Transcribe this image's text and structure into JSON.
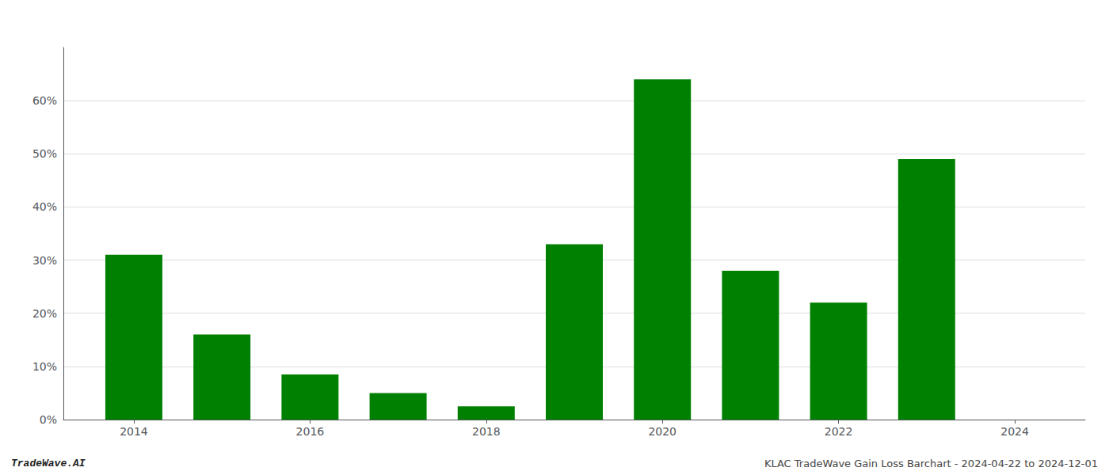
{
  "chart_data": {
    "type": "bar",
    "x": [
      2014,
      2015,
      2016,
      2017,
      2018,
      2019,
      2020,
      2021,
      2022,
      2023
    ],
    "values": [
      0.31,
      0.16,
      0.085,
      0.05,
      0.025,
      0.33,
      0.64,
      0.28,
      0.22,
      0.49
    ],
    "color": "#008000",
    "xlim": [
      2013.2,
      2024.8
    ],
    "xticks": [
      2014,
      2016,
      2018,
      2020,
      2022,
      2024
    ],
    "ylim": [
      0,
      0.7
    ],
    "yticks": [
      {
        "value": 0.0,
        "label": "0%"
      },
      {
        "value": 0.1,
        "label": "10%"
      },
      {
        "value": 0.2,
        "label": "20%"
      },
      {
        "value": 0.3,
        "label": "30%"
      },
      {
        "value": 0.4,
        "label": "40%"
      },
      {
        "value": 0.5,
        "label": "50%"
      },
      {
        "value": 0.6,
        "label": "60%"
      }
    ],
    "grid": true,
    "annotations": [
      "TradeWave.AI",
      "KLAC TradeWave Gain Loss Barchart - 2024-04-22 to 2024-12-01"
    ]
  }
}
